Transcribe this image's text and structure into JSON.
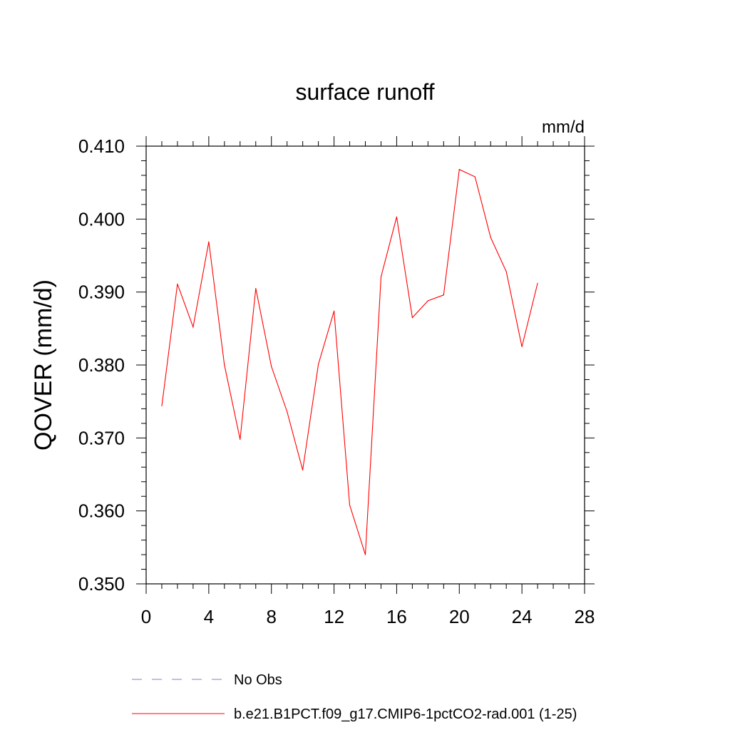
{
  "chart_data": {
    "type": "line",
    "title": "surface runoff",
    "units": "mm/d",
    "ylabel": "QOVER  (mm/d)",
    "xlabel": "",
    "xlim": [
      0,
      28
    ],
    "ylim": [
      0.35,
      0.41
    ],
    "x_ticks": [
      "0",
      "4",
      "8",
      "12",
      "16",
      "20",
      "24",
      "28"
    ],
    "y_ticks": [
      "0.350",
      "0.360",
      "0.370",
      "0.380",
      "0.390",
      "0.400",
      "0.410"
    ],
    "grid": false,
    "legend_position": "bottom",
    "colors": {
      "model": "#ff0000",
      "obs": "#8080c0"
    },
    "series": [
      {
        "name": "b.e21.B1PCT.f09_g17.CMIP6-1pctCO2-rad.001 (1-25)",
        "style": "solid",
        "x": [
          1,
          2,
          3,
          4,
          5,
          6,
          7,
          8,
          9,
          10,
          11,
          12,
          13,
          14,
          15,
          16,
          17,
          18,
          19,
          20,
          21,
          22,
          23,
          24,
          25
        ],
        "values": [
          0.3744,
          0.3911,
          0.3852,
          0.3969,
          0.38,
          0.3698,
          0.3905,
          0.3798,
          0.3736,
          0.3656,
          0.3801,
          0.3874,
          0.3608,
          0.354,
          0.3921,
          0.4003,
          0.3865,
          0.3888,
          0.3896,
          0.4068,
          0.4058,
          0.3975,
          0.3928,
          0.3825,
          0.3912
        ]
      },
      {
        "name": "No Obs",
        "style": "dashed",
        "x": [],
        "values": []
      }
    ]
  }
}
